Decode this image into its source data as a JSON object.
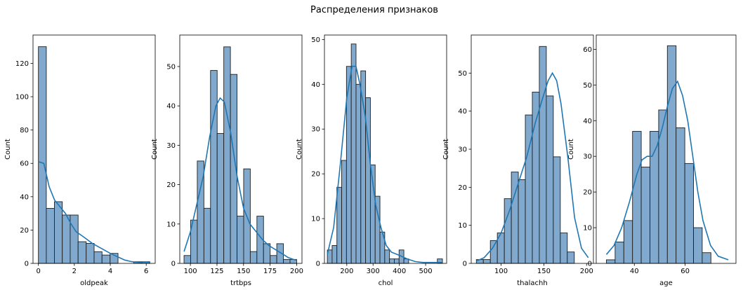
{
  "figure": {
    "title": "Распределения признаков",
    "bar_fill": "#80a9cd",
    "bar_edge": "#1f1f1f",
    "kde_color": "#1f77b4"
  },
  "chart_data": [
    {
      "type": "histogram",
      "xlabel": "oldpeak",
      "ylabel": "Count",
      "xlim": [
        -0.3,
        6.5
      ],
      "ylim": [
        0,
        137
      ],
      "xticks": [
        0,
        2,
        4,
        6
      ],
      "yticks": [
        0,
        20,
        40,
        60,
        80,
        100,
        120
      ],
      "bin_edges": [
        0,
        0.44,
        0.89,
        1.33,
        1.77,
        2.21,
        2.66,
        3.1,
        3.54,
        3.99,
        4.43,
        4.87,
        5.31,
        5.76,
        6.2
      ],
      "counts": [
        130,
        33,
        37,
        29,
        29,
        13,
        12,
        7,
        5,
        6,
        0,
        0,
        1,
        1
      ],
      "kde": {
        "x": [
          0,
          0.3,
          0.6,
          0.9,
          1.2,
          1.5,
          1.8,
          2.1,
          2.5,
          3.0,
          3.5,
          4.0,
          4.4,
          4.8,
          5.2,
          5.6,
          6.0,
          6.2
        ],
        "y": [
          61,
          60,
          46,
          38,
          34,
          30,
          24,
          19,
          16,
          12,
          9,
          6,
          4,
          2,
          1,
          0.6,
          0.8,
          0.6
        ]
      }
    },
    {
      "type": "histogram",
      "xlabel": "trtbps",
      "ylabel": "Count",
      "xlim": [
        90,
        205
      ],
      "ylim": [
        0,
        58
      ],
      "xticks": [
        100,
        125,
        150,
        175,
        200
      ],
      "yticks": [
        0,
        10,
        20,
        30,
        40,
        50
      ],
      "bin_edges": [
        94,
        100.24,
        106.47,
        112.71,
        118.94,
        125.18,
        131.41,
        137.65,
        143.88,
        150.12,
        156.35,
        162.59,
        168.82,
        175.06,
        181.29,
        187.53,
        193.76,
        200
      ],
      "counts": [
        2,
        11,
        26,
        14,
        49,
        33,
        55,
        48,
        12,
        24,
        3,
        12,
        5,
        2,
        5,
        1,
        1
      ],
      "kde": {
        "x": [
          94,
          100,
          106,
          112,
          118,
          124,
          128,
          132,
          138,
          144,
          150,
          156,
          162,
          168,
          174,
          180,
          186,
          192,
          198,
          200
        ],
        "y": [
          3,
          8,
          15,
          22,
          32,
          40,
          42,
          41,
          33,
          22,
          14,
          10,
          8,
          6,
          4.5,
          3.5,
          2.5,
          1.5,
          0.9,
          0.8
        ]
      }
    },
    {
      "type": "histogram",
      "xlabel": "chol",
      "ylabel": "Count",
      "xlim": [
        115,
        580
      ],
      "ylim": [
        0,
        51
      ],
      "xticks": [
        200,
        300,
        400,
        500
      ],
      "yticks": [
        0,
        10,
        20,
        30,
        40,
        50
      ],
      "bin_edges": [
        126,
        144.2,
        162.4,
        180.6,
        198.8,
        217.0,
        235.2,
        253.4,
        271.6,
        289.8,
        308.0,
        326.2,
        344.4,
        362.6,
        380.8,
        399.0,
        417.2,
        435.4,
        453.6,
        471.8,
        490.0,
        508.2,
        526.4,
        544.6,
        564
      ],
      "counts": [
        3,
        4,
        17,
        23,
        44,
        49,
        40,
        43,
        37,
        22,
        15,
        7,
        3,
        1,
        1,
        3,
        1,
        0,
        0,
        0,
        0,
        0,
        0,
        1
      ],
      "kde": {
        "x": [
          126,
          150,
          175,
          200,
          220,
          235,
          250,
          270,
          290,
          310,
          330,
          350,
          370,
          400,
          430,
          460,
          490,
          520,
          545,
          564
        ],
        "y": [
          2,
          8,
          22,
          37,
          44,
          44,
          40,
          33,
          22,
          13,
          8,
          4,
          2.5,
          1.8,
          1,
          0.4,
          0.2,
          0.2,
          0.2,
          0.2
        ]
      }
    },
    {
      "type": "histogram",
      "xlabel": "thalachh",
      "ylabel": "Count",
      "xlim": [
        65,
        208
      ],
      "ylim": [
        0,
        60
      ],
      "xticks": [
        100,
        150,
        200
      ],
      "yticks": [
        0,
        10,
        20,
        30,
        40,
        50
      ],
      "bin_edges": [
        71,
        79.19,
        87.38,
        95.56,
        103.75,
        111.94,
        120.12,
        128.31,
        136.5,
        144.69,
        152.88,
        161.06,
        169.25,
        177.44,
        185.62,
        193.81,
        202
      ],
      "counts": [
        1,
        1,
        6,
        8,
        17,
        24,
        22,
        39,
        45,
        57,
        44,
        28,
        8,
        3,
        0,
        0
      ],
      "kde": {
        "x": [
          71,
          80,
          90,
          100,
          110,
          120,
          130,
          140,
          148,
          155,
          160,
          165,
          170,
          178,
          186,
          194,
          202
        ],
        "y": [
          0.6,
          1.5,
          4,
          8,
          14,
          21,
          28,
          37,
          43,
          48,
          50,
          48,
          42,
          28,
          12,
          4,
          1.5
        ]
      }
    },
    {
      "type": "histogram",
      "xlabel": "age",
      "ylabel": "Count",
      "xlim": [
        25,
        80
      ],
      "ylim": [
        0,
        64
      ],
      "xticks": [
        40,
        60
      ],
      "yticks": [
        0,
        10,
        20,
        30,
        40,
        50,
        60
      ],
      "bin_edges": [
        29,
        32.43,
        35.86,
        39.29,
        42.71,
        46.14,
        49.57,
        53.0,
        56.43,
        59.86,
        63.29,
        66.71,
        70.14,
        73.57,
        77
      ],
      "counts": [
        1,
        6,
        12,
        37,
        27,
        37,
        43,
        61,
        38,
        28,
        10,
        3,
        0,
        0
      ],
      "kde": {
        "x": [
          29,
          32,
          35,
          38,
          41,
          43,
          45,
          47,
          49,
          51,
          53,
          55,
          57,
          59,
          61,
          63,
          65,
          67,
          70,
          73,
          77
        ],
        "y": [
          2.5,
          5,
          10,
          17,
          25,
          29,
          30,
          30,
          33,
          38,
          44,
          49,
          51,
          47,
          40,
          30,
          20,
          12,
          5,
          2,
          1
        ]
      }
    }
  ]
}
